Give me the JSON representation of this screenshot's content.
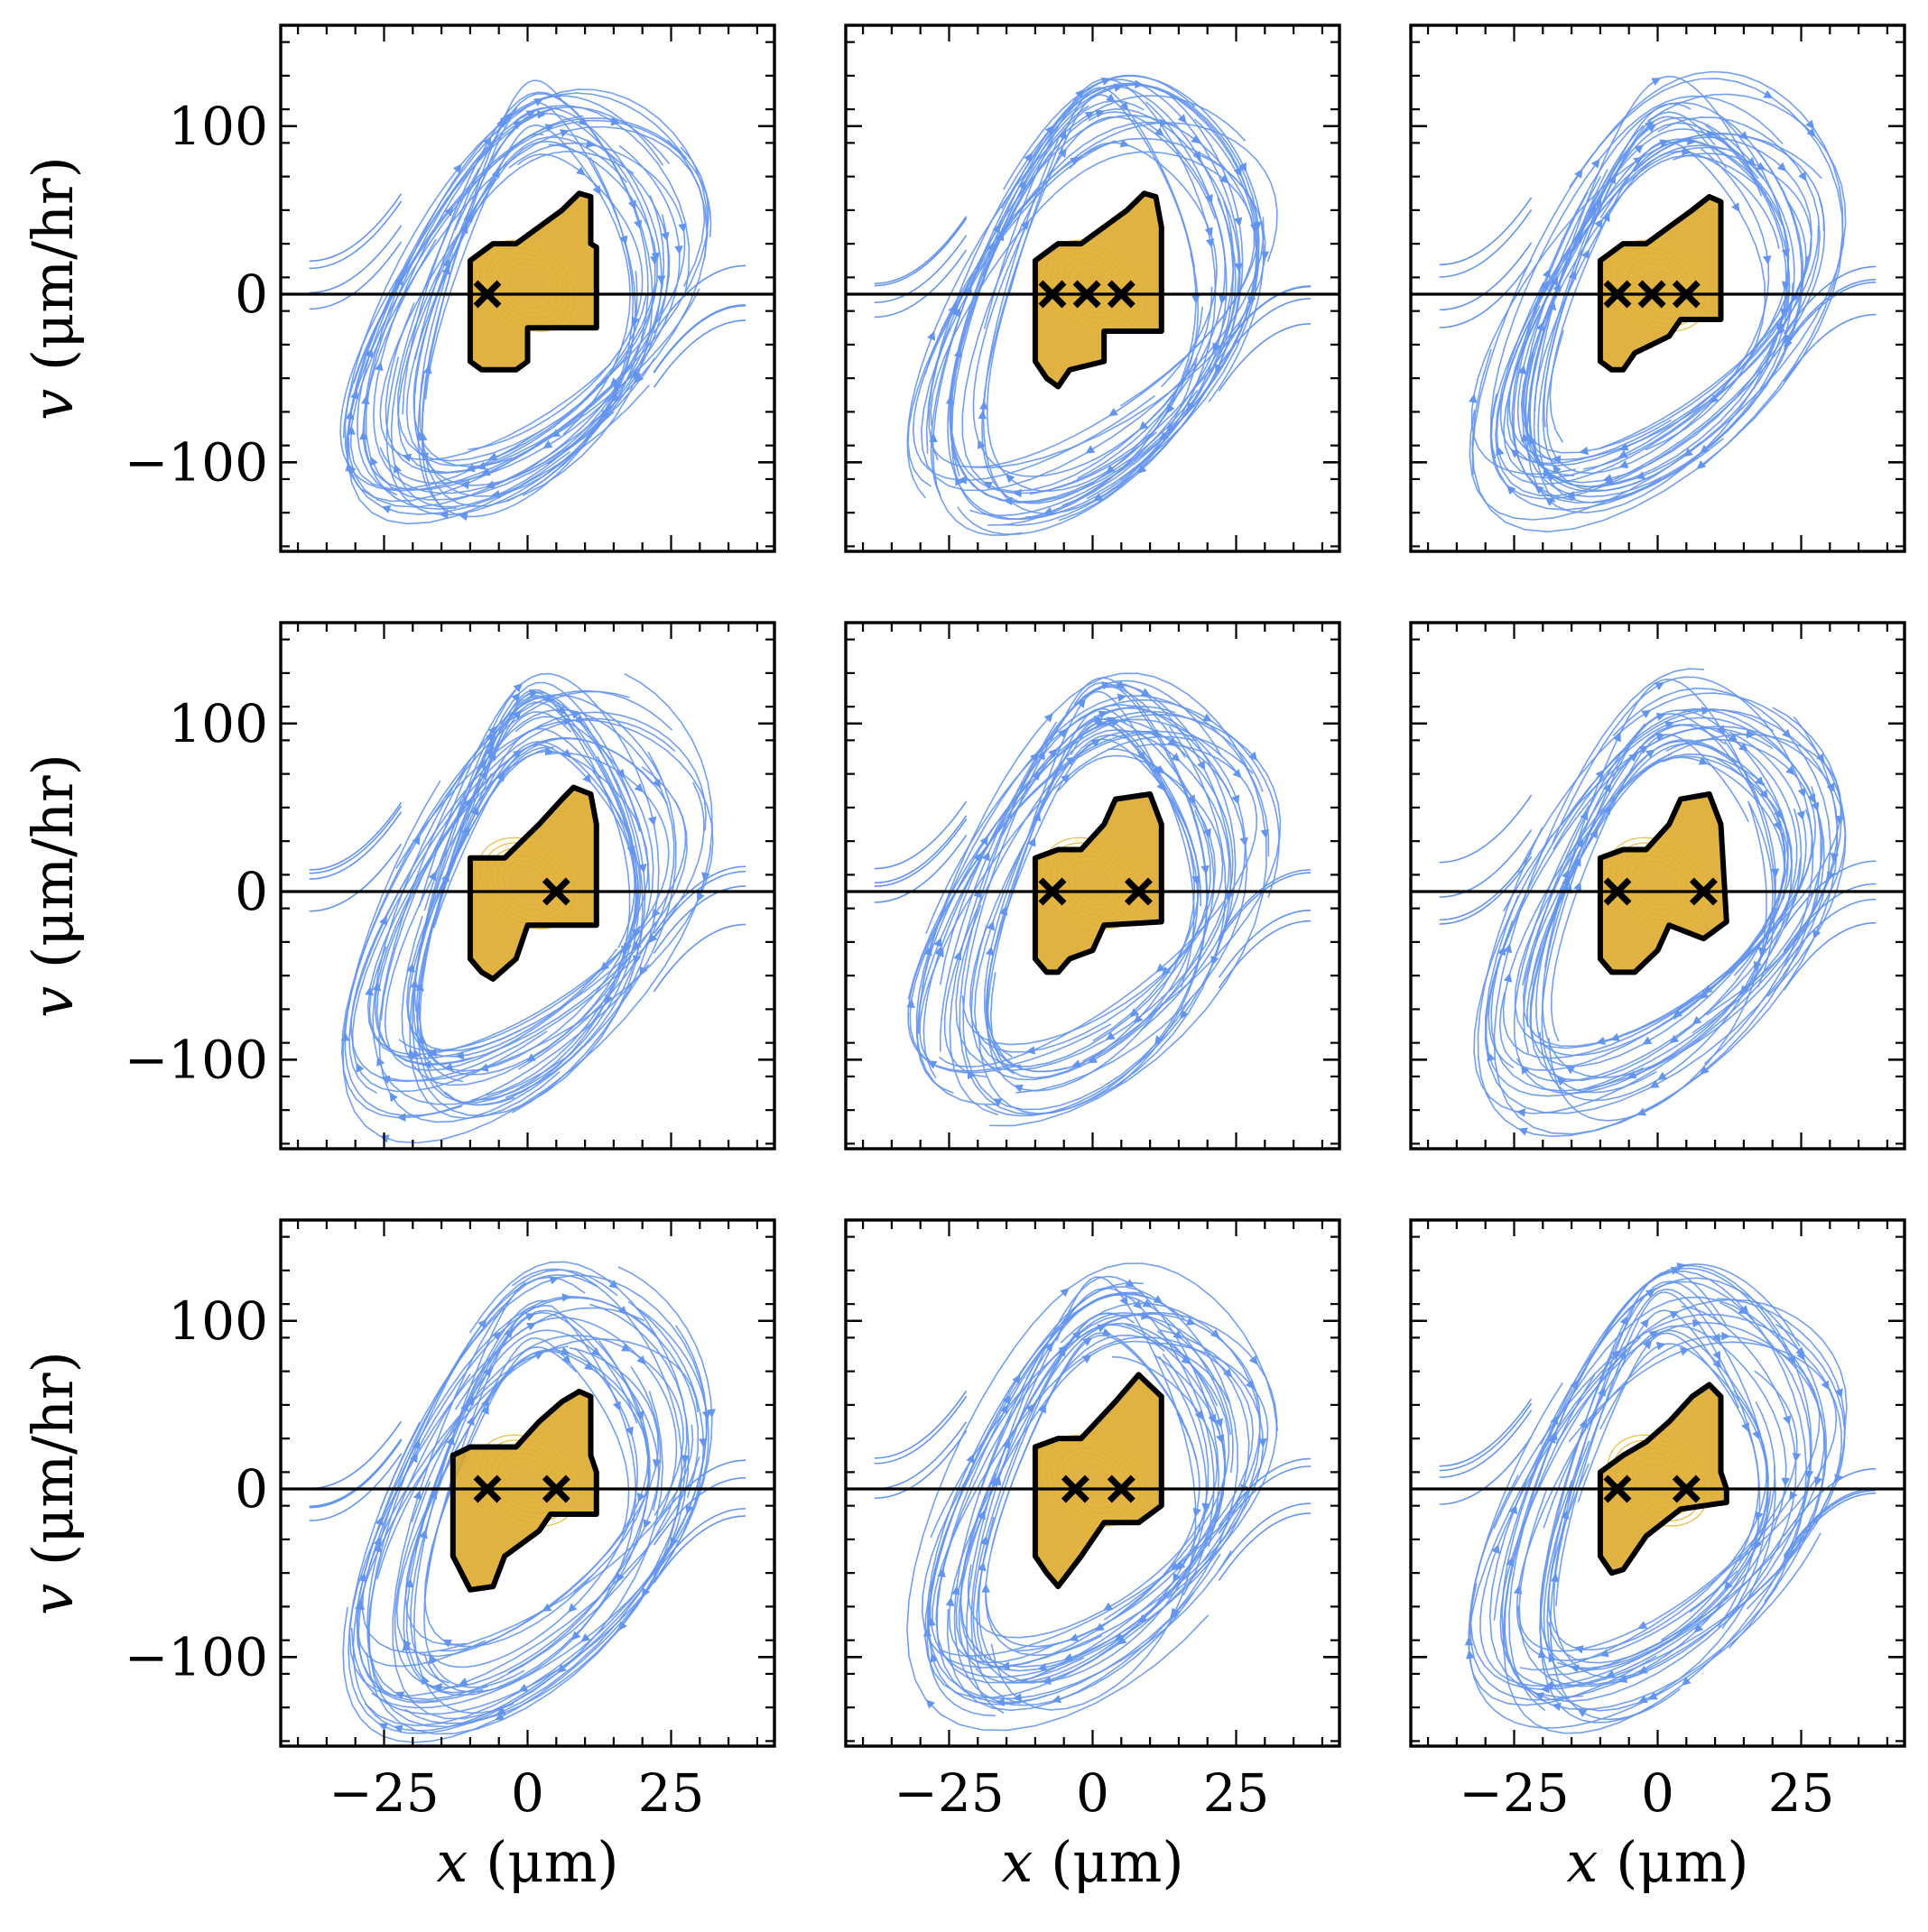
{
  "colors": {
    "stream": "#6495ED",
    "basin": "#DAA520",
    "outline": "#000000",
    "axis": "#000000",
    "background": "#ffffff"
  },
  "chart_data": {
    "type": "streamplot-grid",
    "rows": 3,
    "cols": 3,
    "xlim": [
      -43,
      43
    ],
    "ylim": [
      -153,
      160
    ],
    "xticks": [
      -25,
      0,
      25
    ],
    "xtick_labels": [
      "−25",
      "0",
      "25"
    ],
    "yticks": [
      -100,
      0,
      100
    ],
    "ytick_labels": [
      "−100",
      "0",
      "100"
    ],
    "xlabel": {
      "var": "x",
      "unit": "(μm)"
    },
    "ylabel": {
      "var": "v",
      "unit": "(μm/hr)"
    },
    "reference_line_y": 0,
    "panels": [
      {
        "id": "r1c1",
        "fixed_points_x": [
          -7
        ],
        "basin_outline": [
          [
            -10,
            20
          ],
          [
            -6,
            30
          ],
          [
            -2,
            30
          ],
          [
            2,
            40
          ],
          [
            6,
            50
          ],
          [
            9,
            60
          ],
          [
            11,
            58
          ],
          [
            11,
            30
          ],
          [
            12,
            28
          ],
          [
            12,
            -20
          ],
          [
            0,
            -20
          ],
          [
            0,
            -40
          ],
          [
            -2,
            -45
          ],
          [
            -8,
            -45
          ],
          [
            -10,
            -40
          ],
          [
            -10,
            20
          ]
        ]
      },
      {
        "id": "r1c2",
        "fixed_points_x": [
          -7,
          -1,
          5
        ],
        "basin_outline": [
          [
            -10,
            20
          ],
          [
            -6,
            30
          ],
          [
            -2,
            30
          ],
          [
            2,
            40
          ],
          [
            6,
            50
          ],
          [
            9,
            60
          ],
          [
            11,
            58
          ],
          [
            12,
            40
          ],
          [
            12,
            -22
          ],
          [
            2,
            -22
          ],
          [
            2,
            -40
          ],
          [
            -4,
            -45
          ],
          [
            -6,
            -55
          ],
          [
            -8,
            -50
          ],
          [
            -10,
            -40
          ],
          [
            -10,
            20
          ]
        ]
      },
      {
        "id": "r1c3",
        "fixed_points_x": [
          -7,
          -1,
          5
        ],
        "basin_outline": [
          [
            -10,
            20
          ],
          [
            -6,
            30
          ],
          [
            -2,
            30
          ],
          [
            2,
            40
          ],
          [
            6,
            50
          ],
          [
            9,
            58
          ],
          [
            11,
            55
          ],
          [
            11,
            -15
          ],
          [
            4,
            -15
          ],
          [
            2,
            -25
          ],
          [
            -4,
            -35
          ],
          [
            -6,
            -45
          ],
          [
            -8,
            -45
          ],
          [
            -10,
            -40
          ],
          [
            -10,
            20
          ]
        ]
      },
      {
        "id": "r2c1",
        "fixed_points_x": [
          5
        ],
        "basin_outline": [
          [
            -10,
            20
          ],
          [
            -6,
            20
          ],
          [
            -4,
            20
          ],
          [
            2,
            40
          ],
          [
            6,
            55
          ],
          [
            8,
            62
          ],
          [
            11,
            58
          ],
          [
            12,
            40
          ],
          [
            12,
            -20
          ],
          [
            0,
            -20
          ],
          [
            -2,
            -40
          ],
          [
            -6,
            -52
          ],
          [
            -8,
            -48
          ],
          [
            -10,
            -40
          ],
          [
            -10,
            20
          ]
        ]
      },
      {
        "id": "r2c2",
        "fixed_points_x": [
          -7,
          8
        ],
        "basin_outline": [
          [
            -10,
            20
          ],
          [
            -6,
            25
          ],
          [
            -2,
            25
          ],
          [
            2,
            40
          ],
          [
            4,
            55
          ],
          [
            10,
            58
          ],
          [
            12,
            40
          ],
          [
            12,
            -18
          ],
          [
            2,
            -20
          ],
          [
            0,
            -35
          ],
          [
            -4,
            -40
          ],
          [
            -6,
            -48
          ],
          [
            -8,
            -48
          ],
          [
            -10,
            -40
          ],
          [
            -10,
            20
          ]
        ]
      },
      {
        "id": "r2c3",
        "fixed_points_x": [
          -7,
          8
        ],
        "basin_outline": [
          [
            -10,
            20
          ],
          [
            -6,
            25
          ],
          [
            -2,
            25
          ],
          [
            2,
            40
          ],
          [
            4,
            55
          ],
          [
            9,
            58
          ],
          [
            11,
            40
          ],
          [
            12,
            -18
          ],
          [
            8,
            -28
          ],
          [
            2,
            -20
          ],
          [
            0,
            -35
          ],
          [
            -4,
            -48
          ],
          [
            -8,
            -48
          ],
          [
            -10,
            -40
          ],
          [
            -10,
            20
          ]
        ]
      },
      {
        "id": "r3c1",
        "fixed_points_x": [
          -7,
          5
        ],
        "basin_outline": [
          [
            -13,
            20
          ],
          [
            -10,
            25
          ],
          [
            -2,
            25
          ],
          [
            2,
            40
          ],
          [
            6,
            52
          ],
          [
            9,
            58
          ],
          [
            11,
            55
          ],
          [
            11,
            20
          ],
          [
            12,
            10
          ],
          [
            12,
            -15
          ],
          [
            4,
            -15
          ],
          [
            2,
            -25
          ],
          [
            -4,
            -40
          ],
          [
            -6,
            -58
          ],
          [
            -10,
            -60
          ],
          [
            -13,
            -40
          ],
          [
            -13,
            20
          ]
        ]
      },
      {
        "id": "r3c2",
        "fixed_points_x": [
          -3,
          5
        ],
        "basin_outline": [
          [
            -10,
            25
          ],
          [
            -6,
            30
          ],
          [
            -2,
            30
          ],
          [
            4,
            52
          ],
          [
            8,
            68
          ],
          [
            12,
            55
          ],
          [
            12,
            -10
          ],
          [
            8,
            -20
          ],
          [
            2,
            -20
          ],
          [
            -2,
            -40
          ],
          [
            -6,
            -58
          ],
          [
            -8,
            -50
          ],
          [
            -10,
            -40
          ],
          [
            -10,
            25
          ]
        ]
      },
      {
        "id": "r3c3",
        "fixed_points_x": [
          -7,
          5
        ],
        "basin_outline": [
          [
            -10,
            10
          ],
          [
            -6,
            20
          ],
          [
            -2,
            28
          ],
          [
            2,
            40
          ],
          [
            6,
            55
          ],
          [
            9,
            62
          ],
          [
            11,
            55
          ],
          [
            11,
            10
          ],
          [
            12,
            0
          ],
          [
            12,
            -8
          ],
          [
            4,
            -12
          ],
          [
            -2,
            -28
          ],
          [
            -6,
            -48
          ],
          [
            -8,
            -50
          ],
          [
            -10,
            -40
          ],
          [
            -10,
            10
          ]
        ]
      }
    ]
  }
}
